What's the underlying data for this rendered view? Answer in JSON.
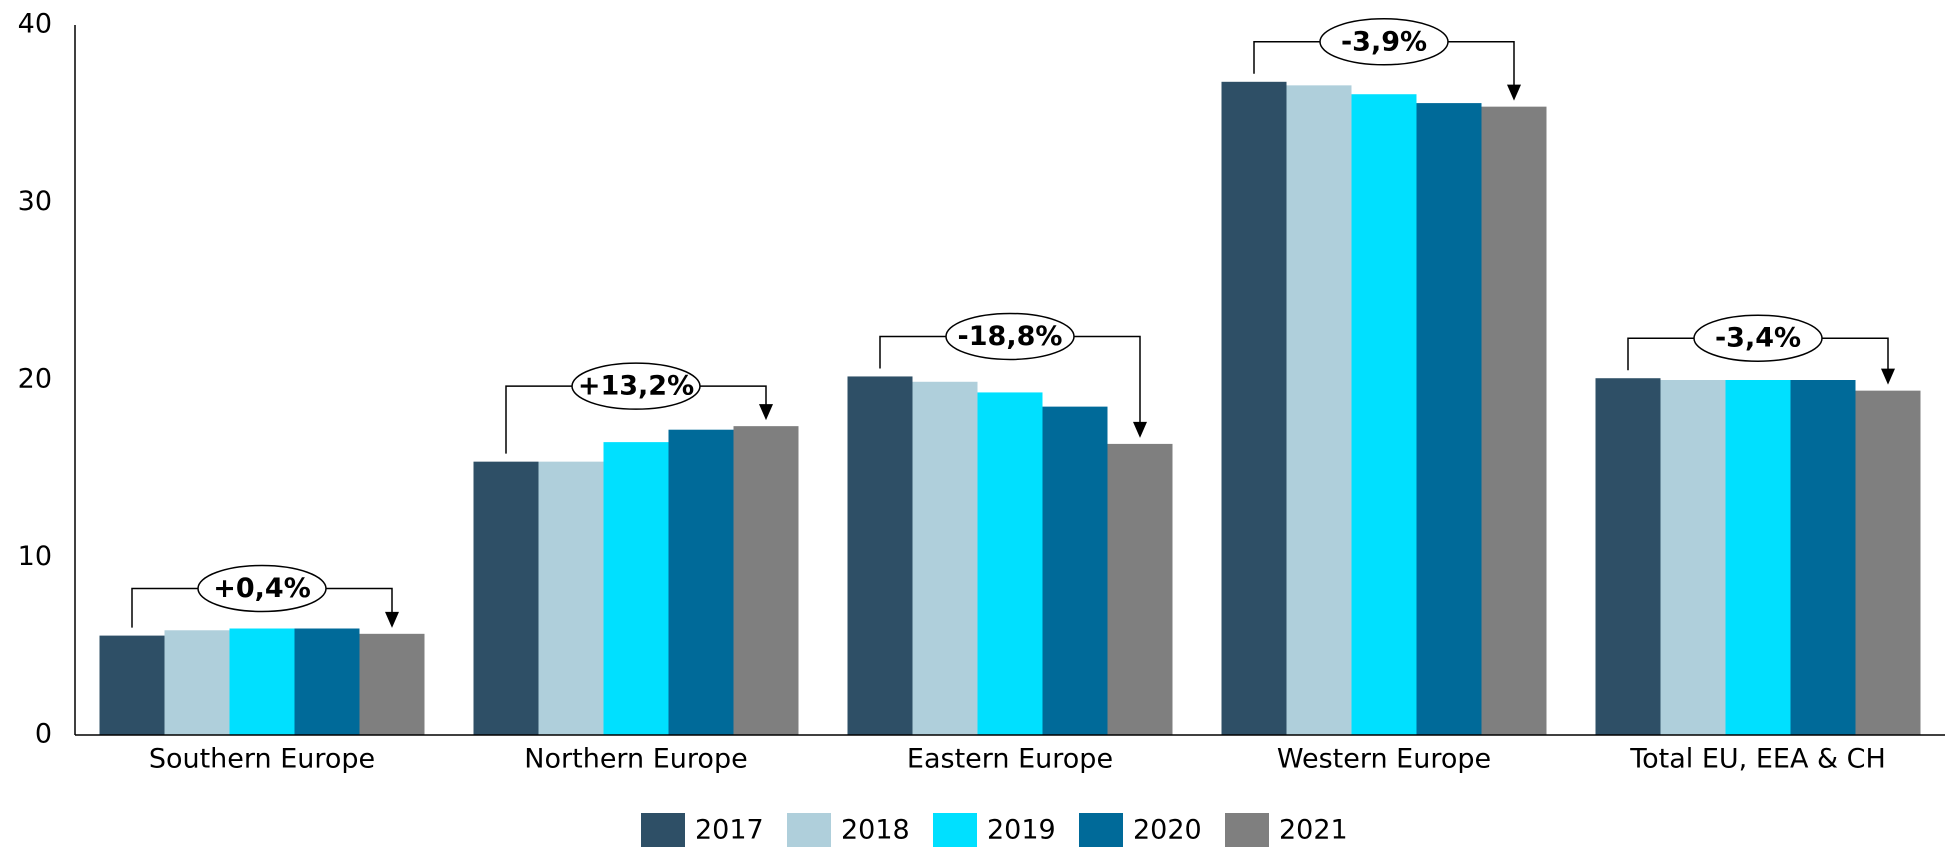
{
  "chart_data": {
    "type": "bar",
    "categories": [
      "Southern Europe",
      "Northern Europe",
      "Eastern Europe",
      "Western Europe",
      "Total EU, EEA & CH"
    ],
    "series": [
      {
        "name": "2017",
        "color": "#2e4f66",
        "values": [
          5.6,
          15.4,
          20.2,
          36.8,
          20.1
        ]
      },
      {
        "name": "2018",
        "color": "#afcfdb",
        "values": [
          5.9,
          15.4,
          19.9,
          36.6,
          20.0
        ]
      },
      {
        "name": "2019",
        "color": "#00e0ff",
        "values": [
          6.0,
          16.5,
          19.3,
          36.1,
          20.0
        ]
      },
      {
        "name": "2020",
        "color": "#006a99",
        "values": [
          6.0,
          17.2,
          18.5,
          35.6,
          20.0
        ]
      },
      {
        "name": "2021",
        "color": "#7f7f7f",
        "values": [
          5.7,
          17.4,
          16.4,
          35.4,
          19.4
        ]
      }
    ],
    "annotations": [
      "+0,4%",
      "+13,2%",
      "-18,8%",
      "-3,9%",
      "-3,4%"
    ],
    "ylim": [
      0,
      40
    ],
    "yticks": [
      0,
      10,
      20,
      30,
      40
    ],
    "grid": false,
    "legend": "bottom"
  }
}
